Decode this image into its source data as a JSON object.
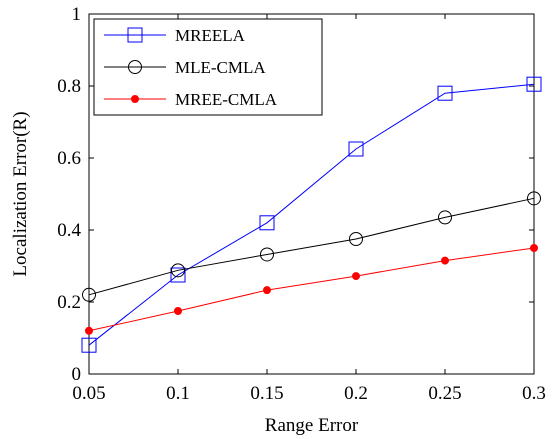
{
  "chart_data": {
    "type": "line",
    "title": "",
    "xlabel": "Range Error",
    "ylabel": "Localization Error(R)",
    "x": [
      0.05,
      0.1,
      0.15,
      0.2,
      0.25,
      0.3
    ],
    "xlim": [
      0.05,
      0.3
    ],
    "ylim": [
      0,
      1
    ],
    "x_ticks": [
      "0.05",
      "0.1",
      "0.15",
      "0.2",
      "0.25",
      "0.3"
    ],
    "y_ticks": [
      "0",
      "0.2",
      "0.4",
      "0.6",
      "0.8",
      "1"
    ],
    "grid": false,
    "legend_position": "top-left",
    "series": [
      {
        "name": "MREELA",
        "color": "#0000ff",
        "marker": "square",
        "values": [
          0.08,
          0.275,
          0.42,
          0.625,
          0.78,
          0.805
        ]
      },
      {
        "name": "MLE-CMLA",
        "color": "#000000",
        "marker": "circle",
        "values": [
          0.22,
          0.288,
          0.332,
          0.375,
          0.435,
          0.488
        ]
      },
      {
        "name": "MREE-CMLA",
        "color": "#ff0000",
        "marker": "dot",
        "values": [
          0.12,
          0.175,
          0.233,
          0.272,
          0.315,
          0.35
        ]
      }
    ]
  }
}
